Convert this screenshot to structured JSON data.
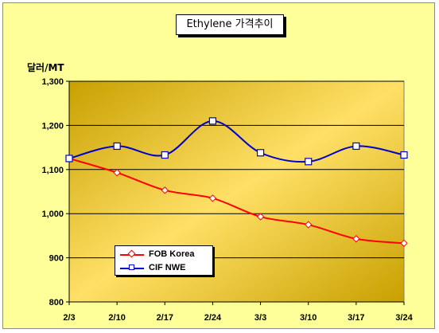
{
  "chart_data": {
    "type": "line",
    "title": "Ethylene 가격추이",
    "ylabel": "달러/MT",
    "xlabel": "",
    "categories": [
      "2/3",
      "2/10",
      "2/17",
      "2/24",
      "3/3",
      "3/10",
      "3/17",
      "3/24"
    ],
    "ylim": [
      800,
      1300
    ],
    "yticks": [
      "800",
      "900",
      "1,000",
      "1,100",
      "1,200",
      "1,300"
    ],
    "ytick_values": [
      800,
      900,
      1000,
      1100,
      1200,
      1300
    ],
    "grid": true,
    "legend_position": "lower-left",
    "series": [
      {
        "name": "FOB Korea",
        "color": "#ff0000",
        "marker": "diamond",
        "values": [
          1125,
          1093,
          1053,
          1035,
          993,
          975,
          943,
          933
        ]
      },
      {
        "name": "CIF NWE",
        "color": "#0000cc",
        "marker": "square",
        "values": [
          1125,
          1153,
          1133,
          1210,
          1138,
          1118,
          1153,
          1133
        ]
      }
    ],
    "colors": {
      "plot_light": "#ffe066",
      "plot_dark": "#c8a000",
      "chart_bg": "#ffff99"
    }
  }
}
